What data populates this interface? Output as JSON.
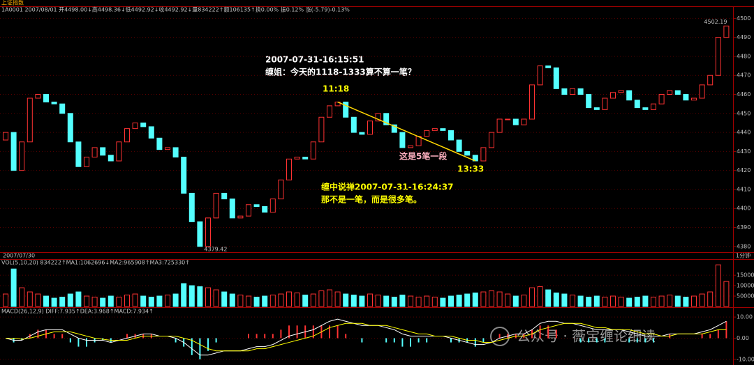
{
  "header": {
    "title": "上证指数",
    "quote": "1A0001 2007/08/01 开4498.00↓高4498.36↓低4492.92↓收4492.92↓量834222↑额106135↑换0.00% 振0.12% 涨(-5.79)-0.13%"
  },
  "chart_data": [
    {
      "type": "candlestick",
      "open": [
        4436,
        4440,
        4420,
        4435,
        4458,
        4460,
        4456,
        4455,
        4450,
        4435,
        4422,
        4427,
        4432,
        4428,
        4425,
        4435,
        4442,
        4445,
        4443,
        4437,
        4431,
        4432,
        4427,
        4408,
        4393,
        4380,
        4395,
        4408,
        4405,
        4395,
        4396,
        4402,
        4401,
        4398,
        4405,
        4415,
        4426,
        4427,
        4426,
        4435,
        4448,
        4454,
        4456,
        4448,
        4440,
        4439,
        4446,
        4450,
        4444,
        4440,
        4432,
        4433,
        4438,
        4441,
        4442,
        4441,
        4436,
        4430,
        4428,
        4425,
        4432,
        4440,
        4447,
        4447,
        4444,
        4447,
        4465,
        4475,
        4474,
        4463,
        4460,
        4463,
        4460,
        4453,
        4452,
        4458,
        4461,
        4462,
        4457,
        4453,
        4452,
        4455,
        4460,
        4462,
        4460,
        4457,
        4458,
        4465,
        4470,
        4490
      ],
      "close": [
        4440,
        4420,
        4435,
        4458,
        4460,
        4456,
        4455,
        4450,
        4435,
        4422,
        4427,
        4432,
        4428,
        4425,
        4435,
        4442,
        4445,
        4443,
        4437,
        4431,
        4432,
        4427,
        4408,
        4393,
        4380,
        4395,
        4408,
        4405,
        4395,
        4396,
        4402,
        4401,
        4398,
        4405,
        4415,
        4426,
        4427,
        4426,
        4435,
        4448,
        4454,
        4456,
        4448,
        4440,
        4439,
        4446,
        4450,
        4444,
        4440,
        4432,
        4433,
        4438,
        4441,
        4442,
        4441,
        4436,
        4430,
        4428,
        4425,
        4432,
        4440,
        4447,
        4447,
        4444,
        4447,
        4465,
        4475,
        4474,
        4463,
        4460,
        4463,
        4460,
        4453,
        4452,
        4458,
        4461,
        4462,
        4457,
        4453,
        4452,
        4455,
        4460,
        4462,
        4460,
        4457,
        4458,
        4465,
        4470,
        4490,
        4496
      ],
      "up_color": "#ff3232",
      "down_color": "#54ffff",
      "ylim": [
        4377,
        4506
      ],
      "yticks": [
        4380,
        4390,
        4400,
        4410,
        4420,
        4430,
        4440,
        4450,
        4460,
        4470,
        4480,
        4490,
        4500
      ],
      "high_label": "4502.19",
      "low_label": "4379.42",
      "annotations": [
        "2007-07-31-16:15:51",
        "缠姐：今天的1118-1333算不算一笔？",
        "11:18",
        "13:33",
        "这是5笔一段",
        "缠中说禅2007-07-31-16:24:37",
        "那不是一笔，而是很多笔。"
      ]
    },
    {
      "type": "volume",
      "date": "2007/07/30",
      "period": "1分钟",
      "legend": "VOL(5,10,20) 834222↑MA1:1062696↓MA2:965908↑MA3:725330↑",
      "values": [
        60000,
        180000,
        90000,
        70000,
        60000,
        50000,
        40000,
        45000,
        60000,
        70000,
        50000,
        45000,
        40000,
        50000,
        45000,
        55000,
        60000,
        50000,
        45000,
        50000,
        55000,
        60000,
        110000,
        100000,
        95000,
        90000,
        80000,
        70000,
        60000,
        55000,
        50000,
        45000,
        50000,
        55000,
        60000,
        70000,
        65000,
        55000,
        60000,
        75000,
        80000,
        70000,
        60000,
        55000,
        50000,
        60000,
        55000,
        50000,
        45000,
        55000,
        50000,
        45000,
        50000,
        45000,
        40000,
        50000,
        55000,
        60000,
        65000,
        70000,
        75000,
        70000,
        60000,
        50000,
        55000,
        90000,
        95000,
        80000,
        65000,
        60000,
        55000,
        50000,
        45000,
        50000,
        45000,
        50000,
        45000,
        40000,
        45000,
        50000,
        45000,
        50000,
        55000,
        50000,
        45000,
        50000,
        60000,
        70000,
        200000,
        120000
      ],
      "ylim": [
        0,
        224000
      ],
      "yticks": [
        50000,
        100000,
        150000
      ]
    },
    {
      "type": "macd",
      "legend": "MACD(26,12,9) DIFF:7.935↑DEA:3.968↑MACD:7.934↑",
      "macd": [
        0,
        -2,
        -1,
        2,
        4,
        4,
        2,
        2,
        -2,
        -4,
        -4,
        -2,
        -1,
        -2,
        0,
        2,
        2,
        2,
        2,
        0,
        0,
        -2,
        -4,
        -8,
        -10,
        -6,
        -2,
        0,
        0,
        0,
        2,
        2,
        2,
        2,
        4,
        6,
        6,
        6,
        6,
        6,
        6,
        6,
        2,
        0,
        -2,
        0,
        0,
        -2,
        -2,
        -4,
        -4,
        -2,
        -2,
        0,
        0,
        -2,
        -2,
        -2,
        -4,
        -2,
        0,
        2,
        2,
        2,
        2,
        4,
        6,
        6,
        4,
        0,
        0,
        -2,
        -2,
        -2,
        -2,
        0,
        0,
        -2,
        -2,
        -2,
        -2,
        0,
        2,
        0,
        0,
        0,
        2,
        2,
        4,
        8
      ],
      "diff": [
        0,
        -1,
        -1,
        1,
        3,
        4,
        4,
        4,
        2,
        0,
        -1,
        -1,
        -1,
        -2,
        -1,
        0,
        1,
        2,
        2,
        1,
        1,
        0,
        -2,
        -5,
        -8,
        -8,
        -7,
        -6,
        -6,
        -6,
        -5,
        -4,
        -4,
        -3,
        -1,
        1,
        2,
        3,
        4,
        6,
        8,
        9,
        8,
        7,
        6,
        6,
        6,
        5,
        4,
        2,
        1,
        1,
        1,
        1,
        1,
        0,
        -1,
        -2,
        -3,
        -3,
        -2,
        0,
        1,
        2,
        2,
        4,
        7,
        8,
        8,
        7,
        7,
        6,
        5,
        4,
        4,
        4,
        4,
        3,
        2,
        1,
        1,
        1,
        2,
        2,
        2,
        2,
        3,
        4,
        6,
        8
      ],
      "dea": [
        0,
        0,
        -0.5,
        0,
        1,
        2,
        3,
        3,
        3,
        2,
        1,
        0,
        -0.5,
        -1,
        -1,
        -1,
        0,
        1,
        1,
        1,
        1,
        1,
        0,
        -1,
        -3,
        -5,
        -6,
        -6,
        -6,
        -6,
        -6,
        -5,
        -5,
        -4,
        -3,
        -2,
        -1,
        0,
        1,
        3,
        5,
        6,
        7,
        7,
        7,
        6,
        6,
        6,
        5,
        4,
        3,
        2,
        2,
        1,
        1,
        1,
        0,
        -1,
        -1,
        -2,
        -2,
        -1,
        0,
        1,
        1,
        2,
        4,
        5,
        6,
        7,
        7,
        7,
        6,
        5,
        5,
        4,
        4,
        4,
        3,
        2,
        2,
        1,
        1,
        2,
        2,
        2,
        2,
        3,
        4,
        4
      ],
      "diff_color": "#ffffff",
      "dea_color": "#ffff00",
      "ylim": [
        -11.7,
        14
      ],
      "yticks": [
        {
          "value": 10,
          "label": "10.00"
        },
        {
          "value": 0,
          "label": "0.00"
        },
        {
          "value": -10,
          "label": "-10.00"
        }
      ]
    }
  ],
  "watermark": "公众号 · 薇宝缠论细读"
}
